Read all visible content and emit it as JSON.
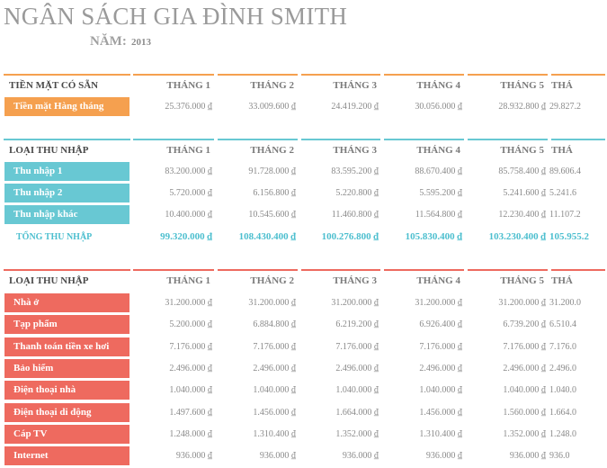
{
  "header": {
    "title": "NGÂN SÁCH GIA ĐÌNH SMITH",
    "year_label": "NĂM:",
    "year": "2013"
  },
  "months": [
    "THÁNG 1",
    "THÁNG 2",
    "THÁNG 3",
    "THÁNG 4",
    "THÁNG 5",
    "THÁ"
  ],
  "colors": {
    "orange": "#f5a04f",
    "teal": "#68c8d3",
    "coral": "#ee6a5f",
    "total_text": "#4dbfcf"
  },
  "cash": {
    "heading": "TIỀN MẶT CÓ SẴN",
    "rows": [
      {
        "label": "Tiền mặt Hàng tháng",
        "values": [
          "25.376.000 ₫",
          "33.009.600 ₫",
          "24.419.200 ₫",
          "30.056.000 ₫",
          "28.932.800 ₫",
          "29.827.2"
        ]
      }
    ]
  },
  "income": {
    "heading": "LOẠI THU NHẬP",
    "rows": [
      {
        "label": "Thu nhập 1",
        "values": [
          "83.200.000 ₫",
          "91.728.000 ₫",
          "83.595.200 ₫",
          "88.670.400 ₫",
          "85.758.400 ₫",
          "89.606.4"
        ]
      },
      {
        "label": "Thu nhập 2",
        "values": [
          "5.720.000 ₫",
          "6.156.800 ₫",
          "5.220.800 ₫",
          "5.595.200 ₫",
          "5.241.600 ₫",
          "5.241.6"
        ]
      },
      {
        "label": "Thu nhập khác",
        "values": [
          "10.400.000 ₫",
          "10.545.600 ₫",
          "11.460.800 ₫",
          "11.564.800 ₫",
          "12.230.400 ₫",
          "11.107.2"
        ]
      }
    ],
    "total": {
      "label": "TỔNG THU NHẬP",
      "values": [
        "99.320.000 ₫",
        "108.430.400 ₫",
        "100.276.800 ₫",
        "105.830.400 ₫",
        "103.230.400 ₫",
        "105.955.2"
      ]
    }
  },
  "expenses": {
    "heading": "LOẠI THU NHẬP",
    "rows": [
      {
        "label": "Nhà ở",
        "values": [
          "31.200.000 ₫",
          "31.200.000 ₫",
          "31.200.000 ₫",
          "31.200.000 ₫",
          "31.200.000 ₫",
          "31.200.0"
        ]
      },
      {
        "label": "Tạp phẩm",
        "values": [
          "5.200.000 ₫",
          "6.884.800 ₫",
          "6.219.200 ₫",
          "6.926.400 ₫",
          "6.739.200 ₫",
          "6.510.4"
        ]
      },
      {
        "label": "Thanh toán tiền xe hơi",
        "values": [
          "7.176.000 ₫",
          "7.176.000 ₫",
          "7.176.000 ₫",
          "7.176.000 ₫",
          "7.176.000 ₫",
          "7.176.0"
        ]
      },
      {
        "label": "Bảo hiểm",
        "values": [
          "2.496.000 ₫",
          "2.496.000 ₫",
          "2.496.000 ₫",
          "2.496.000 ₫",
          "2.496.000 ₫",
          "2.496.0"
        ]
      },
      {
        "label": "Điện thoại nhà",
        "values": [
          "1.040.000 ₫",
          "1.040.000 ₫",
          "1.040.000 ₫",
          "1.040.000 ₫",
          "1.040.000 ₫",
          "1.040.0"
        ]
      },
      {
        "label": "Điện thoại di động",
        "values": [
          "1.497.600 ₫",
          "1.456.000 ₫",
          "1.664.000 ₫",
          "1.456.000 ₫",
          "1.560.000 ₫",
          "1.664.0"
        ]
      },
      {
        "label": "Cáp TV",
        "values": [
          "1.248.000 ₫",
          "1.310.400 ₫",
          "1.352.000 ₫",
          "1.310.400 ₫",
          "1.352.000 ₫",
          "1.248.0"
        ]
      },
      {
        "label": "Internet",
        "values": [
          "936.000 ₫",
          "936.000 ₫",
          "936.000 ₫",
          "936.000 ₫",
          "936.000 ₫",
          "936.0"
        ]
      }
    ]
  }
}
